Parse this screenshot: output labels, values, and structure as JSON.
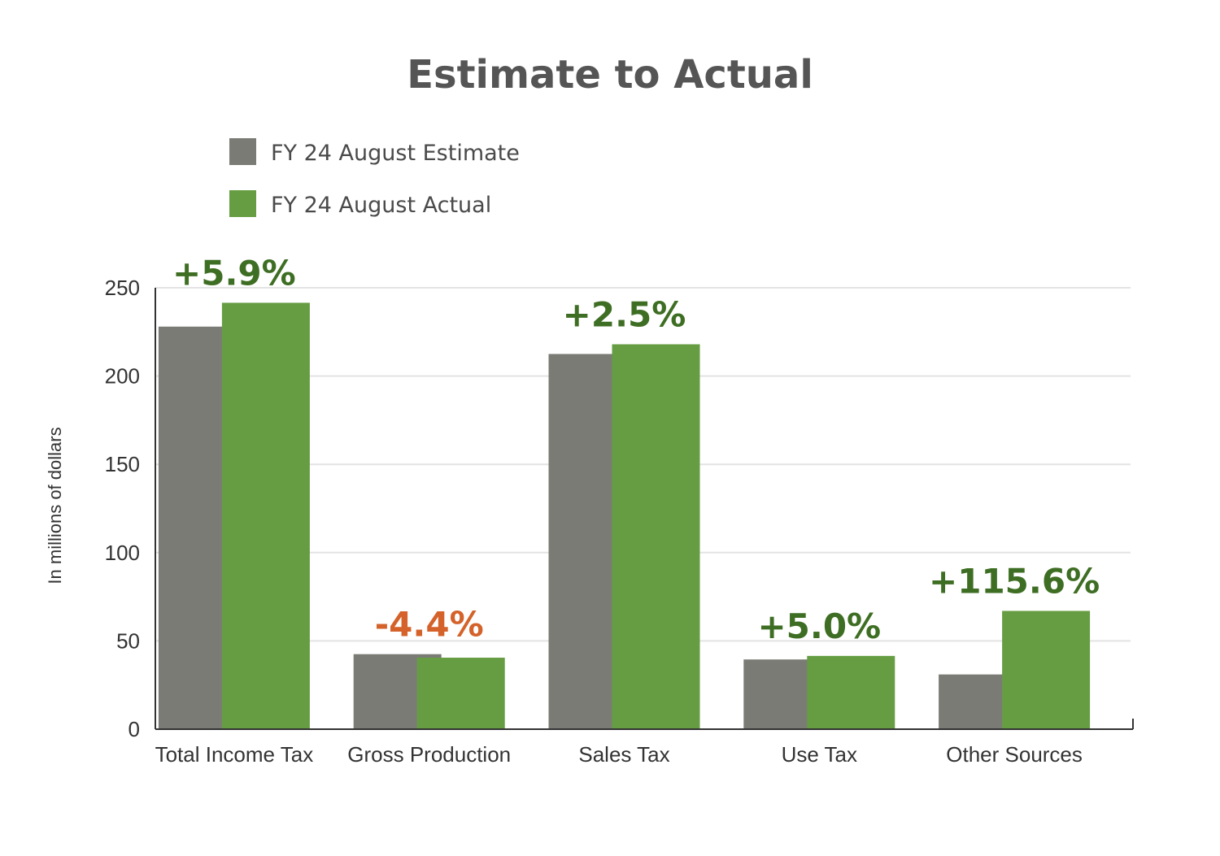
{
  "chart_data": {
    "type": "bar",
    "title": "Estimate to Actual",
    "ylabel": "In millions of dollars",
    "xlabel": "",
    "ylim": [
      0,
      250
    ],
    "yticks": [
      0,
      50,
      100,
      150,
      200,
      250
    ],
    "grid": true,
    "legend_position": "top-left",
    "categories": [
      "Total Income Tax",
      "Gross Production",
      "Sales Tax",
      "Use Tax",
      "Other Sources"
    ],
    "series": [
      {
        "name": "FY 24 August Estimate",
        "color": "#7b7b76",
        "values": [
          228,
          42.5,
          212.5,
          39.5,
          31
        ]
      },
      {
        "name": "FY 24 August Actual",
        "color": "#669d43",
        "values": [
          241.5,
          40.5,
          218,
          41.5,
          67
        ]
      }
    ],
    "annotations": [
      {
        "category": "Total Income Tax",
        "text": "+5.9%",
        "color": "#3e6e23"
      },
      {
        "category": "Gross Production",
        "text": "-4.4%",
        "color": "#d4622a"
      },
      {
        "category": "Sales Tax",
        "text": "+2.5%",
        "color": "#3e6e23"
      },
      {
        "category": "Use Tax",
        "text": "+5.0%",
        "color": "#3e6e23"
      },
      {
        "category": "Other Sources",
        "text": "+115.6%",
        "color": "#3e6e23"
      }
    ]
  }
}
